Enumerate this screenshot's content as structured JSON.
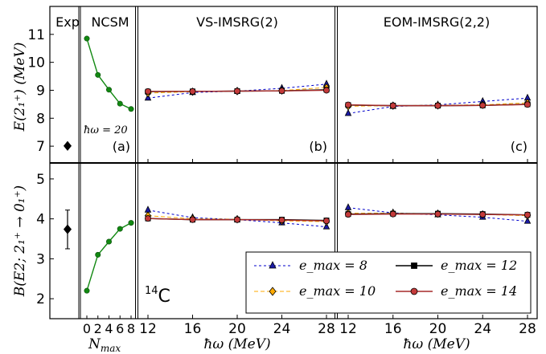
{
  "panel_titles": {
    "exp": "Exp",
    "ncsm": "NCSM",
    "vs": "VS-IMSRG(2)",
    "eom": "EOM-IMSRG(2,2)"
  },
  "panel_tags": {
    "a": "(a)",
    "b": "(b)",
    "c": "(c)"
  },
  "hw_note": "ħω = 20",
  "nucleus": {
    "mass": "14",
    "symbol": "C"
  },
  "axis_labels": {
    "top_y": "E(2₁⁺) (MeV)",
    "bottom_y": "B(E2; 2₁⁺ → 0₁⁺)",
    "nmax": "N",
    "nmax_sub": "max",
    "hw": "ħω (MeV)"
  },
  "colors": {
    "e8": "#0000cc",
    "e10": "#ffaa00",
    "e12": "#000000",
    "e14": "#a52a2a",
    "ncsm": "#118811"
  },
  "chart_data": {
    "type": "line",
    "top_ylim": [
      6.4,
      12
    ],
    "top_yticks": [
      7,
      8,
      9,
      10,
      11
    ],
    "bottom_ylim": [
      1.5,
      5.4
    ],
    "bottom_yticks": [
      2,
      3,
      4,
      5
    ],
    "hw_x": [
      12,
      16,
      20,
      24,
      28
    ],
    "nmax_x": [
      0,
      2,
      4,
      6,
      8
    ],
    "nmax_ticks": [
      "0",
      "2",
      "4",
      "6",
      "8"
    ],
    "exp": {
      "E": 7.01,
      "B": 3.74,
      "B_err": [
        3.25,
        4.22
      ]
    },
    "ncsm": {
      "E": [
        10.85,
        9.55,
        9.02,
        8.52,
        8.33
      ],
      "B": [
        2.2,
        3.1,
        3.43,
        3.75,
        3.9
      ]
    },
    "series": [
      {
        "key": "e8",
        "name": "e_max = 8",
        "nlabel": "8",
        "marker": "triangle",
        "dash": "3,3",
        "vs_E": [
          8.72,
          8.92,
          8.97,
          9.07,
          9.22
        ],
        "vs_B": [
          4.22,
          4.03,
          3.98,
          3.9,
          3.8
        ],
        "eom_E": [
          8.17,
          8.42,
          8.48,
          8.6,
          8.72
        ],
        "eom_B": [
          4.28,
          4.15,
          4.1,
          4.04,
          3.94
        ]
      },
      {
        "key": "e10",
        "name": "e_max = 10",
        "nlabel": "10",
        "marker": "diamond",
        "dash": "5,3",
        "vs_E": [
          8.9,
          8.95,
          8.97,
          8.99,
          9.1
        ],
        "vs_B": [
          4.08,
          4.0,
          3.99,
          3.95,
          3.93
        ],
        "eom_E": [
          8.43,
          8.45,
          8.46,
          8.48,
          8.55
        ],
        "eom_B": [
          4.14,
          4.14,
          4.13,
          4.11,
          4.08
        ]
      },
      {
        "key": "e12",
        "name": "e_max = 12",
        "nlabel": "12",
        "marker": "square",
        "dash": "",
        "vs_E": [
          8.95,
          8.96,
          8.97,
          8.98,
          9.02
        ],
        "vs_B": [
          4.01,
          3.98,
          3.98,
          3.98,
          3.96
        ],
        "eom_E": [
          8.47,
          8.45,
          8.45,
          8.46,
          8.5
        ],
        "eom_B": [
          4.12,
          4.13,
          4.13,
          4.12,
          4.1
        ]
      },
      {
        "key": "e14",
        "name": "e_max = 14",
        "nlabel": "14",
        "marker": "circle",
        "dash": "",
        "vs_E": [
          8.96,
          8.96,
          8.97,
          8.98,
          9.0
        ],
        "vs_B": [
          4.01,
          3.98,
          3.98,
          3.97,
          3.95
        ],
        "eom_E": [
          8.48,
          8.45,
          8.45,
          8.46,
          8.49
        ],
        "eom_B": [
          4.11,
          4.12,
          4.12,
          4.11,
          4.1
        ]
      }
    ]
  }
}
